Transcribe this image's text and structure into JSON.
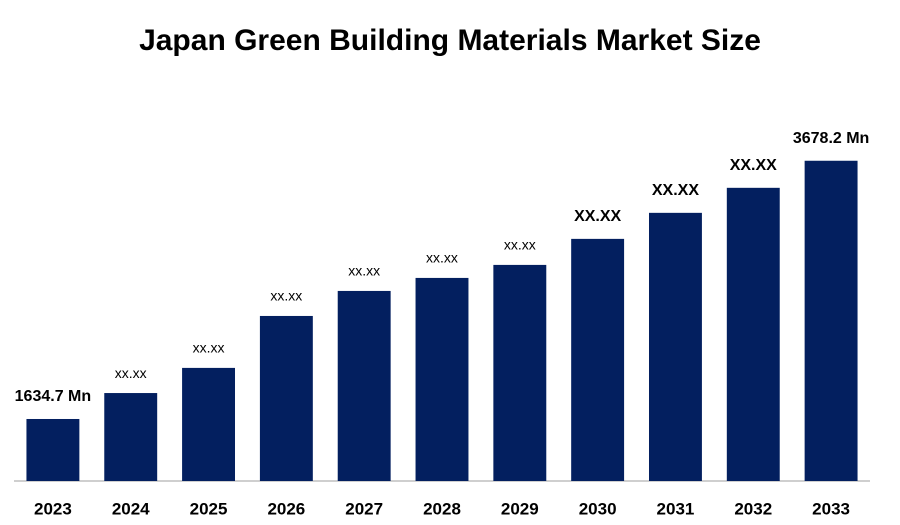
{
  "chart_data": {
    "type": "bar",
    "title": "Japan Green Building Materials Market Size",
    "categories": [
      "2023",
      "2024",
      "2025",
      "2026",
      "2027",
      "2028",
      "2029",
      "2030",
      "2031",
      "2032",
      "2033"
    ],
    "values": [
      1634.7,
      1840,
      2039,
      2450,
      2648,
      2751,
      2854,
      3060,
      3266,
      3464,
      3678.2
    ],
    "value_labels": [
      "1634.7 Mn",
      "xx.xx",
      "xx.xx",
      "xx.xx",
      "xx.xx",
      "xx.xx",
      "xx.xx",
      "XX.XX",
      "XX.XX",
      "XX.XX",
      "3678.2 Mn"
    ],
    "color": "#031f5f",
    "ylim": [
      1144,
      3700
    ]
  }
}
